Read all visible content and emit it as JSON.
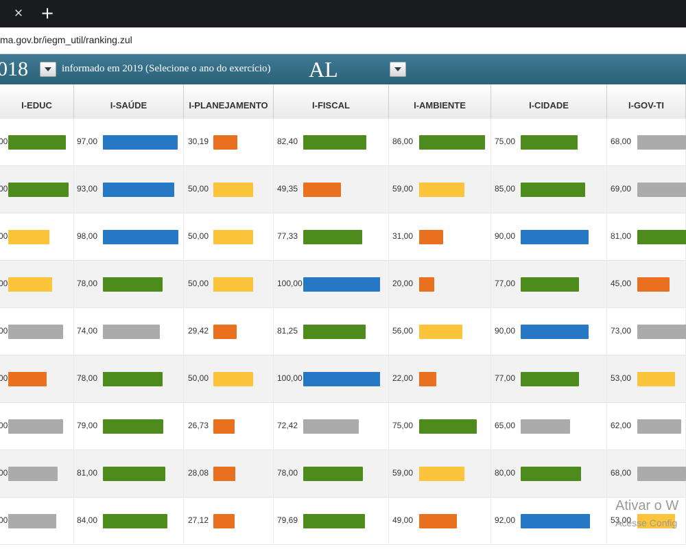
{
  "browser": {
    "close_icon": "×",
    "new_tab_icon": "+",
    "url": "ma.gov.br/iegm_util/ranking.zul"
  },
  "banner": {
    "year_fragment": "018",
    "text": "informado em 2019 (Selecione o ano do exercício)",
    "state": "AL"
  },
  "table": {
    "columns": [
      "I-EDUC",
      "I-SAÚDE",
      "I-PLANEJAMENTO",
      "I-FISCAL",
      "I-AMBIENTE",
      "I-CIDADE",
      "I-GOV-TI"
    ],
    "rows": [
      [
        {
          "v": "00",
          "c": "green",
          "f": 0.84
        },
        {
          "v": "97,00",
          "c": "blue",
          "f": 0.97
        },
        {
          "v": "30,19",
          "c": "orange",
          "f": 0.3
        },
        {
          "v": "82,40",
          "c": "green",
          "f": 0.82
        },
        {
          "v": "86,00",
          "c": "green",
          "f": 0.86
        },
        {
          "v": "75,00",
          "c": "green",
          "f": 0.75
        },
        {
          "v": "68,00",
          "c": "gray",
          "f": 0.68
        }
      ],
      [
        {
          "v": "00",
          "c": "green",
          "f": 0.88
        },
        {
          "v": "93,00",
          "c": "blue",
          "f": 0.93
        },
        {
          "v": "50,00",
          "c": "yellow",
          "f": 0.5
        },
        {
          "v": "49,35",
          "c": "orange",
          "f": 0.49
        },
        {
          "v": "59,00",
          "c": "yellow",
          "f": 0.59
        },
        {
          "v": "85,00",
          "c": "green",
          "f": 0.85
        },
        {
          "v": "69,00",
          "c": "gray",
          "f": 0.69
        }
      ],
      [
        {
          "v": "00",
          "c": "yellow",
          "f": 0.6
        },
        {
          "v": "98,00",
          "c": "blue",
          "f": 0.98
        },
        {
          "v": "50,00",
          "c": "yellow",
          "f": 0.5
        },
        {
          "v": "77,33",
          "c": "green",
          "f": 0.77
        },
        {
          "v": "31,00",
          "c": "orange",
          "f": 0.31
        },
        {
          "v": "90,00",
          "c": "blue",
          "f": 0.9
        },
        {
          "v": "81,00",
          "c": "green",
          "f": 0.81
        }
      ],
      [
        {
          "v": "00",
          "c": "yellow",
          "f": 0.64
        },
        {
          "v": "78,00",
          "c": "green",
          "f": 0.78
        },
        {
          "v": "50,00",
          "c": "yellow",
          "f": 0.5
        },
        {
          "v": "100,00",
          "c": "blue",
          "f": 1.0
        },
        {
          "v": "20,00",
          "c": "orange",
          "f": 0.2
        },
        {
          "v": "77,00",
          "c": "green",
          "f": 0.77
        },
        {
          "v": "45,00",
          "c": "orange",
          "f": 0.45
        }
      ],
      [
        {
          "v": "00",
          "c": "gray",
          "f": 0.8
        },
        {
          "v": "74,00",
          "c": "gray",
          "f": 0.74
        },
        {
          "v": "29,42",
          "c": "orange",
          "f": 0.29
        },
        {
          "v": "81,25",
          "c": "green",
          "f": 0.81
        },
        {
          "v": "56,00",
          "c": "yellow",
          "f": 0.56
        },
        {
          "v": "90,00",
          "c": "blue",
          "f": 0.9
        },
        {
          "v": "73,00",
          "c": "gray",
          "f": 0.73
        }
      ],
      [
        {
          "v": "00",
          "c": "orange",
          "f": 0.56
        },
        {
          "v": "78,00",
          "c": "green",
          "f": 0.78
        },
        {
          "v": "50,00",
          "c": "yellow",
          "f": 0.5
        },
        {
          "v": "100,00",
          "c": "blue",
          "f": 1.0
        },
        {
          "v": "22,00",
          "c": "orange",
          "f": 0.22
        },
        {
          "v": "77,00",
          "c": "green",
          "f": 0.77
        },
        {
          "v": "53,00",
          "c": "yellow",
          "f": 0.53
        }
      ],
      [
        {
          "v": "00",
          "c": "gray",
          "f": 0.8
        },
        {
          "v": "79,00",
          "c": "green",
          "f": 0.79
        },
        {
          "v": "26,73",
          "c": "orange",
          "f": 0.27
        },
        {
          "v": "72,42",
          "c": "gray",
          "f": 0.72
        },
        {
          "v": "75,00",
          "c": "green",
          "f": 0.75
        },
        {
          "v": "65,00",
          "c": "gray",
          "f": 0.65
        },
        {
          "v": "62,00",
          "c": "gray",
          "f": 0.62
        }
      ],
      [
        {
          "v": "00",
          "c": "gray",
          "f": 0.72
        },
        {
          "v": "81,00",
          "c": "green",
          "f": 0.81
        },
        {
          "v": "28,08",
          "c": "orange",
          "f": 0.28
        },
        {
          "v": "78,00",
          "c": "green",
          "f": 0.78
        },
        {
          "v": "59,00",
          "c": "yellow",
          "f": 0.59
        },
        {
          "v": "80,00",
          "c": "green",
          "f": 0.8
        },
        {
          "v": "68,00",
          "c": "gray",
          "f": 0.68
        }
      ],
      [
        {
          "v": "00",
          "c": "gray",
          "f": 0.7
        },
        {
          "v": "84,00",
          "c": "green",
          "f": 0.84
        },
        {
          "v": "27,12",
          "c": "orange",
          "f": 0.27
        },
        {
          "v": "79,69",
          "c": "green",
          "f": 0.8
        },
        {
          "v": "49,00",
          "c": "orange",
          "f": 0.49
        },
        {
          "v": "92,00",
          "c": "blue",
          "f": 0.92
        },
        {
          "v": "53,00",
          "c": "yellow",
          "f": 0.53
        }
      ]
    ]
  },
  "colors": {
    "green": "#4c8b1c",
    "blue": "#2677c4",
    "orange": "#e8701f",
    "yellow": "#fbc43a",
    "gray": "#ababab",
    "banner": "#2f6880"
  },
  "watermark": {
    "line1": "Ativar o W",
    "line2": "Acesse Config"
  }
}
